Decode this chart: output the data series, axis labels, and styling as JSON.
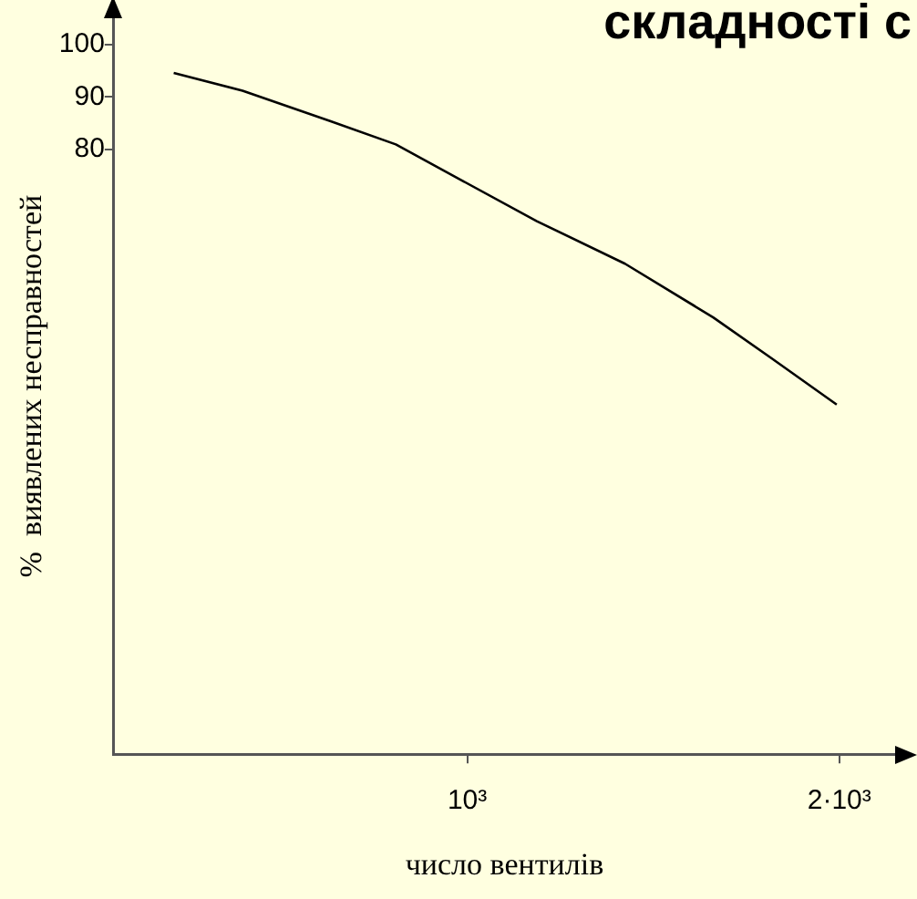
{
  "chart_data": {
    "type": "line",
    "title": "складності с",
    "xlabel": "число вентилів",
    "ylabel": "%  виявлених несправностей",
    "x": [
      211,
      396,
      633,
      808,
      984,
      1187,
      1424,
      1661,
      1818,
      1993
    ],
    "series": [
      {
        "color": "#000000",
        "values": [
          94.6,
          91.2,
          85.4,
          81.0,
          74.2,
          66.4,
          58.3,
          48.1,
          40.3,
          31.5
        ]
      }
    ],
    "xlim": [
      50,
      2150
    ],
    "xticks": [
      {
        "value": 1000,
        "label": "10³"
      },
      {
        "value": 2000,
        "label": "2·10³"
      }
    ],
    "ylim": [
      -35,
      105
    ],
    "yticks": [
      80,
      90,
      100
    ],
    "grid": false,
    "legend": false,
    "marker": "none",
    "line_style": "solid"
  }
}
